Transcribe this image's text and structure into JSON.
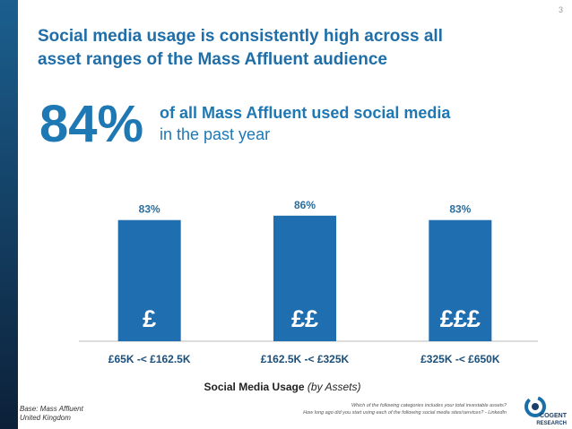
{
  "page_number": "3",
  "chart_data": {
    "type": "bar",
    "title": [
      "Social media usage is consistently high across all",
      "asset ranges of the Mass Affluent audience"
    ],
    "headline": {
      "value": "84%",
      "text": [
        "of all Mass Affluent used social media",
        "in the past year"
      ]
    },
    "categories": [
      "£65K -< £162.5K",
      "£162.5K -< £325K",
      "£325K -< £650K"
    ],
    "bar_symbols": [
      "£",
      "££",
      "£££"
    ],
    "values": [
      83,
      86,
      83
    ],
    "value_labels": [
      "83%",
      "86%",
      "83%"
    ],
    "color": "#1f6eb0",
    "x_label": {
      "main": "Social Media Usage",
      "note": "(by Assets)"
    }
  },
  "footer": {
    "base": [
      "Base: Mass Affluent",
      "United Kingdom"
    ],
    "questions": [
      "Which of the following categories includes your total investable assets?",
      "How long ago did you start using each of the following social media sites/services? - LinkedIn"
    ],
    "logo": [
      "COGENT",
      "RESEARCH"
    ]
  }
}
